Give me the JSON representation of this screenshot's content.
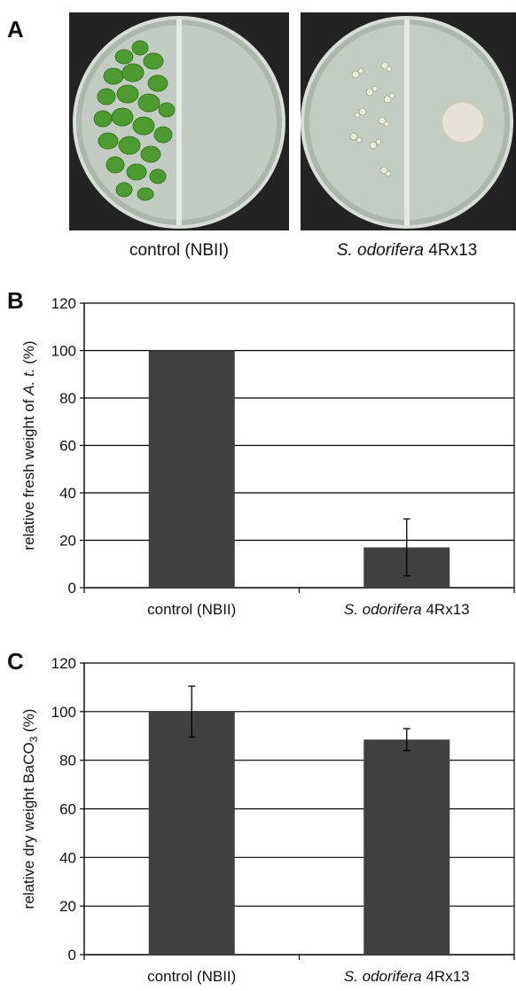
{
  "panel_a": {
    "letter": "A",
    "captions": [
      {
        "text": "control (NBII)",
        "italic": "",
        "rest": ""
      },
      {
        "text": "",
        "italic": "S. odorifera",
        "rest": " 4Rx13"
      }
    ]
  },
  "chart_data": [
    {
      "type": "bar",
      "panel_label": "B",
      "categories": [
        "control (NBII)",
        "S. odorifera 4Rx13"
      ],
      "values": [
        100,
        17
      ],
      "errors": [
        0,
        12
      ],
      "ylabel": "relative fresh weight of A. t. (%)",
      "ylim": [
        0,
        120
      ],
      "yticks": [
        0,
        20,
        40,
        60,
        80,
        100,
        120
      ],
      "grid": true,
      "bar_color": "#404040"
    },
    {
      "type": "bar",
      "panel_label": "C",
      "categories": [
        "control (NBII)",
        "S. odorifera 4Rx13"
      ],
      "values": [
        100,
        88.5
      ],
      "errors": [
        10.5,
        4.5
      ],
      "ylabel": "relative dry weight BaCO3 (%)",
      "ylim": [
        0,
        120
      ],
      "yticks": [
        0,
        20,
        40,
        60,
        80,
        100,
        120
      ],
      "grid": true,
      "bar_color": "#404040"
    }
  ]
}
